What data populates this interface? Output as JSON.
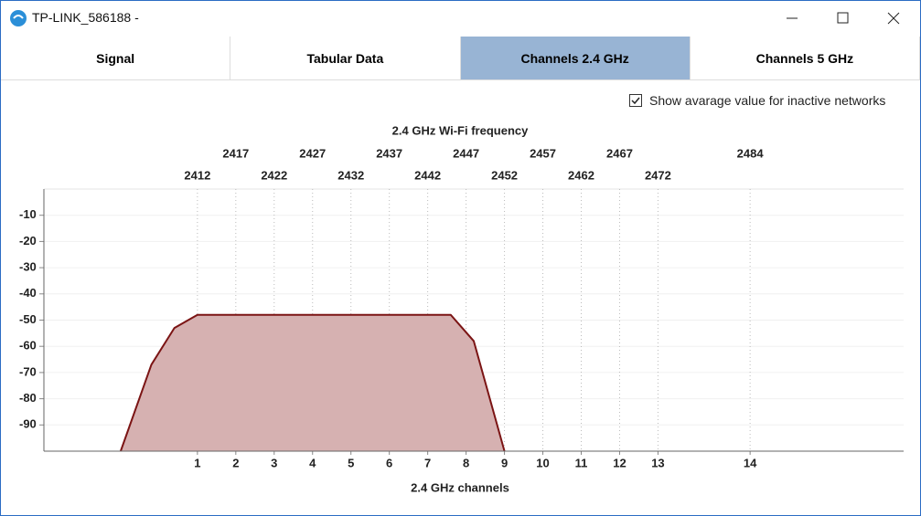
{
  "window": {
    "title": "TP-LINK_586188 -"
  },
  "tabs": {
    "labels": [
      "Signal",
      "Tabular Data",
      "Channels 2.4 GHz",
      "Channels 5 GHz"
    ],
    "active": 2
  },
  "checkbox": {
    "label": "Show avarage value for inactive networks",
    "checked": true
  },
  "chart_data": {
    "type": "area",
    "title": "2.4 GHz Wi-Fi frequency",
    "x_label": "2.4 GHz channels",
    "x": [
      2402,
      2406,
      2409,
      2412,
      2445,
      2448,
      2452
    ],
    "series": [
      {
        "color": "#7b1414",
        "fill": "#d6b1b1",
        "values": [
          -100,
          -67,
          -53,
          -48,
          -48,
          -58,
          -100
        ]
      }
    ],
    "xlim": [
      2392,
      2504
    ],
    "xticks": [
      2412,
      2417,
      2422,
      2427,
      2432,
      2437,
      2442,
      2447,
      2452,
      2457,
      2462,
      2467,
      2472,
      2484
    ],
    "channel_ticks": [
      {
        "value": 2412,
        "label": "1"
      },
      {
        "value": 2417,
        "label": "2"
      },
      {
        "value": 2422,
        "label": "3"
      },
      {
        "value": 2427,
        "label": "4"
      },
      {
        "value": 2432,
        "label": "5"
      },
      {
        "value": 2437,
        "label": "6"
      },
      {
        "value": 2442,
        "label": "7"
      },
      {
        "value": 2447,
        "label": "8"
      },
      {
        "value": 2452,
        "label": "9"
      },
      {
        "value": 2457,
        "label": "10"
      },
      {
        "value": 2462,
        "label": "11"
      },
      {
        "value": 2467,
        "label": "12"
      },
      {
        "value": 2472,
        "label": "13"
      },
      {
        "value": 2484,
        "label": "14"
      }
    ],
    "ylim": [
      -100,
      0
    ],
    "yticks": [
      -10,
      -20,
      -30,
      -40,
      -50,
      -60,
      -70,
      -80,
      -90
    ],
    "grid": true
  }
}
